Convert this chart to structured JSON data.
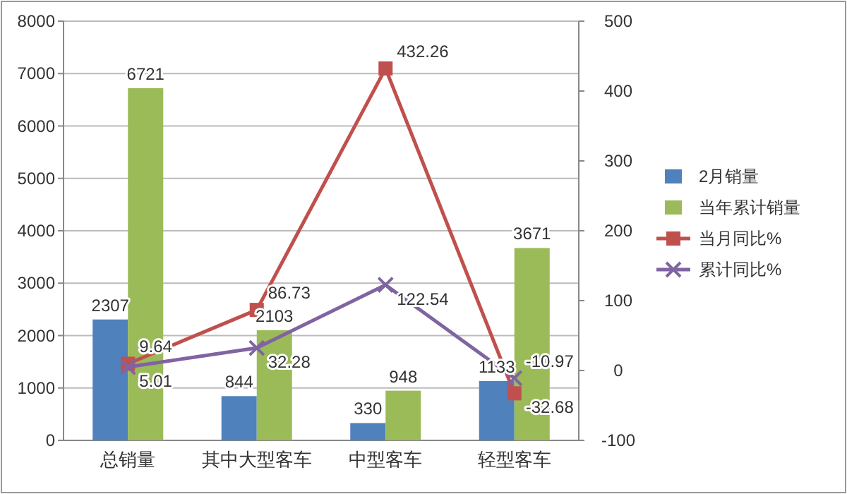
{
  "chart_data": {
    "type": "bar",
    "categories": [
      "总销量",
      "其中大型客车",
      "中型客车",
      "轻型客车"
    ],
    "series": [
      {
        "name": "2月销量",
        "color": "#4f81bd",
        "values": [
          2307,
          844,
          330,
          1133
        ]
      },
      {
        "name": "当年累计销量",
        "color": "#9bbb59",
        "values": [
          6721,
          2103,
          948,
          3671
        ]
      },
      {
        "name": "当月同比%",
        "type": "line",
        "axis": "y2",
        "marker": "square",
        "color": "#c0504d",
        "values": [
          9.64,
          86.73,
          432.26,
          -32.68
        ]
      },
      {
        "name": "累计同比%",
        "type": "line",
        "axis": "y2",
        "marker": "cross",
        "color": "#8064a2",
        "values": [
          5.01,
          32.28,
          122.54,
          -10.97
        ]
      }
    ],
    "ylim": [
      0,
      8000
    ],
    "yticks": [
      0,
      1000,
      2000,
      3000,
      4000,
      5000,
      6000,
      7000,
      8000
    ],
    "y2lim": [
      -100,
      500
    ],
    "y2ticks": [
      -100,
      0,
      100,
      200,
      300,
      400,
      500
    ],
    "grid": "y",
    "legend": "right",
    "data_labels": true
  }
}
